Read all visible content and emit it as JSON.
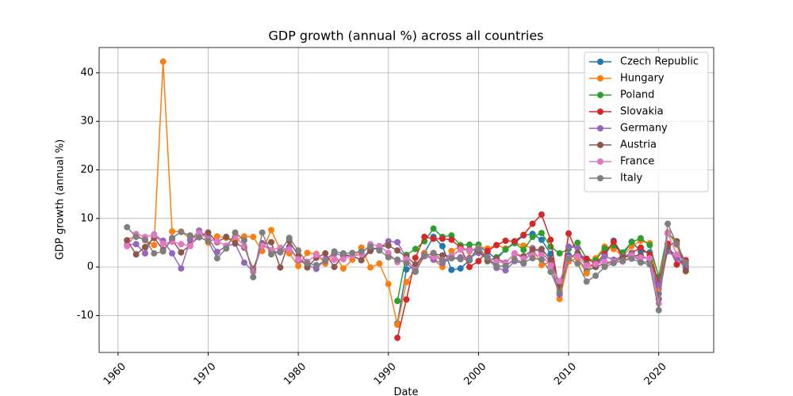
{
  "chart_data": {
    "type": "line",
    "title": "GDP growth (annual %) across all countries",
    "x_label": "Date",
    "y_label": "GDP growth (annual %)",
    "x": [
      1961,
      1962,
      1963,
      1964,
      1965,
      1966,
      1967,
      1968,
      1969,
      1970,
      1971,
      1972,
      1973,
      1974,
      1975,
      1976,
      1977,
      1978,
      1979,
      1980,
      1981,
      1982,
      1983,
      1984,
      1985,
      1986,
      1987,
      1988,
      1989,
      1990,
      1991,
      1992,
      1993,
      1994,
      1995,
      1996,
      1997,
      1998,
      1999,
      2000,
      2001,
      2002,
      2003,
      2004,
      2005,
      2006,
      2007,
      2008,
      2009,
      2010,
      2011,
      2012,
      2013,
      2014,
      2015,
      2016,
      2017,
      2018,
      2019,
      2020,
      2021,
      2022,
      2023
    ],
    "series": [
      {
        "name": "Czech Republic",
        "color": "#1f77b4",
        "values": [
          null,
          null,
          null,
          null,
          null,
          null,
          null,
          null,
          null,
          null,
          null,
          null,
          null,
          null,
          null,
          null,
          null,
          null,
          null,
          null,
          null,
          null,
          null,
          null,
          null,
          null,
          null,
          null,
          null,
          null,
          -11.6,
          -0.5,
          0.1,
          2.9,
          6.2,
          4.3,
          -0.6,
          -0.3,
          1.4,
          4.3,
          3.1,
          1.6,
          3.6,
          4.9,
          6.5,
          6.8,
          5.6,
          2.7,
          -4.7,
          2.4,
          1.8,
          -0.8,
          0.0,
          2.3,
          5.4,
          2.5,
          5.2,
          3.2,
          3.0,
          -5.5,
          3.6,
          2.4,
          -0.1
        ]
      },
      {
        "name": "Hungary",
        "color": "#ff7f0e",
        "values": [
          5.5,
          6.5,
          5.5,
          4.5,
          42.3,
          7.3,
          7.3,
          5.8,
          6.5,
          5.0,
          6.3,
          6.0,
          5.5,
          6.3,
          6.2,
          3.3,
          7.6,
          3.5,
          2.8,
          0.2,
          2.9,
          2.7,
          0.7,
          2.7,
          -0.3,
          1.5,
          4.0,
          -0.1,
          0.7,
          -3.5,
          -11.9,
          -3.1,
          -0.6,
          2.9,
          1.5,
          0.0,
          3.3,
          4.2,
          3.2,
          4.2,
          3.8,
          4.5,
          3.8,
          5.0,
          4.4,
          3.9,
          0.4,
          1.0,
          -6.6,
          1.1,
          1.9,
          -1.3,
          1.8,
          4.2,
          3.7,
          2.2,
          4.3,
          5.4,
          4.9,
          -4.5,
          7.1,
          4.6,
          -0.9
        ]
      },
      {
        "name": "Poland",
        "color": "#2ca02c",
        "values": [
          null,
          null,
          null,
          null,
          null,
          null,
          null,
          null,
          null,
          null,
          null,
          null,
          null,
          null,
          null,
          null,
          null,
          null,
          null,
          null,
          null,
          null,
          null,
          null,
          null,
          null,
          null,
          null,
          null,
          null,
          -7.0,
          2.5,
          3.7,
          5.3,
          7.9,
          6.2,
          6.5,
          4.5,
          4.6,
          4.6,
          1.2,
          2.0,
          3.6,
          5.0,
          3.5,
          6.2,
          7.0,
          4.2,
          2.8,
          3.7,
          5.0,
          1.6,
          1.4,
          3.8,
          4.4,
          3.0,
          5.1,
          5.9,
          4.5,
          -2.0,
          6.9,
          5.3,
          0.2
        ]
      },
      {
        "name": "Slovakia",
        "color": "#d62728",
        "values": [
          null,
          null,
          null,
          null,
          null,
          null,
          null,
          null,
          null,
          null,
          null,
          null,
          null,
          null,
          null,
          null,
          null,
          null,
          null,
          null,
          null,
          null,
          null,
          null,
          null,
          null,
          null,
          null,
          null,
          null,
          -14.6,
          -6.7,
          1.9,
          6.2,
          5.8,
          5.8,
          5.6,
          4.0,
          0.0,
          1.2,
          3.3,
          4.5,
          5.4,
          5.3,
          6.6,
          8.9,
          10.8,
          5.6,
          -5.5,
          6.9,
          2.8,
          1.7,
          0.7,
          2.7,
          5.2,
          1.9,
          2.9,
          4.0,
          2.5,
          -3.3,
          4.8,
          0.5,
          1.4
        ]
      },
      {
        "name": "Germany",
        "color": "#9467bd",
        "values": [
          4.6,
          4.7,
          2.8,
          6.7,
          5.4,
          2.8,
          -0.3,
          5.5,
          7.5,
          6.0,
          3.1,
          4.3,
          4.8,
          0.9,
          -0.9,
          4.9,
          3.3,
          3.0,
          4.2,
          1.4,
          0.5,
          -0.4,
          1.6,
          2.8,
          2.3,
          2.3,
          1.4,
          3.7,
          3.9,
          5.3,
          5.1,
          1.9,
          -1.0,
          2.5,
          1.5,
          0.8,
          1.8,
          2.0,
          1.9,
          2.9,
          1.7,
          -0.2,
          -0.7,
          1.2,
          0.7,
          3.8,
          3.0,
          1.0,
          -5.7,
          4.2,
          3.9,
          0.4,
          0.4,
          2.2,
          1.5,
          2.2,
          2.7,
          1.0,
          1.1,
          -3.8,
          3.2,
          1.8,
          -0.3
        ]
      },
      {
        "name": "Austria",
        "color": "#8c564b",
        "values": [
          5.5,
          2.6,
          4.1,
          6.0,
          3.5,
          5.6,
          3.0,
          4.5,
          6.3,
          7.1,
          5.1,
          6.2,
          4.9,
          4.0,
          -0.4,
          4.6,
          5.1,
          -0.1,
          5.4,
          2.3,
          -0.1,
          1.9,
          2.8,
          0.0,
          2.5,
          2.3,
          1.4,
          3.3,
          4.2,
          4.4,
          3.4,
          2.1,
          0.5,
          2.4,
          2.7,
          2.4,
          2.2,
          3.6,
          3.6,
          3.4,
          1.4,
          1.7,
          0.9,
          2.7,
          2.2,
          3.5,
          3.7,
          1.5,
          -3.8,
          1.8,
          2.9,
          0.7,
          0.0,
          0.7,
          1.0,
          2.0,
          2.3,
          2.4,
          1.5,
          -6.6,
          4.2,
          5.3,
          -0.8
        ]
      },
      {
        "name": "France",
        "color": "#e377c2",
        "values": [
          4.3,
          6.8,
          6.2,
          6.6,
          4.8,
          5.2,
          4.7,
          4.3,
          7.0,
          5.7,
          5.3,
          4.4,
          6.3,
          4.3,
          -1.0,
          4.4,
          3.5,
          4.0,
          3.6,
          1.6,
          1.1,
          2.5,
          1.3,
          1.5,
          1.6,
          2.3,
          2.6,
          4.7,
          4.3,
          2.9,
          1.0,
          1.6,
          -0.6,
          2.3,
          2.1,
          1.4,
          2.3,
          3.6,
          3.4,
          3.9,
          2.0,
          1.1,
          0.8,
          2.8,
          1.7,
          2.4,
          2.4,
          0.3,
          -2.9,
          1.9,
          2.2,
          0.3,
          0.6,
          1.0,
          1.1,
          1.1,
          2.3,
          1.9,
          1.8,
          -7.5,
          6.9,
          2.6,
          0.9
        ]
      },
      {
        "name": "Italy",
        "color": "#7f7f7f",
        "values": [
          8.2,
          6.2,
          5.6,
          2.8,
          3.2,
          6.0,
          7.2,
          6.5,
          6.1,
          5.4,
          1.8,
          3.8,
          7.1,
          5.5,
          -2.1,
          7.1,
          2.6,
          3.2,
          6.0,
          3.4,
          0.8,
          0.4,
          1.2,
          3.2,
          2.8,
          2.9,
          3.2,
          4.2,
          3.4,
          2.0,
          1.5,
          0.8,
          -0.9,
          2.2,
          2.9,
          1.3,
          1.8,
          1.6,
          1.6,
          3.7,
          2.0,
          0.2,
          0.2,
          1.6,
          0.9,
          1.8,
          1.5,
          -1.0,
          -5.3,
          1.7,
          0.7,
          -3.0,
          -1.8,
          0.0,
          0.8,
          1.3,
          1.7,
          0.9,
          0.5,
          -8.9,
          8.9,
          4.7,
          0.9
        ]
      }
    ],
    "xlim": [
      1957.9,
      2026.1
    ],
    "ylim": [
      -17.6,
      45.2
    ],
    "xticks": [
      1960,
      1970,
      1980,
      1990,
      2000,
      2010,
      2020
    ],
    "yticks": [
      -10,
      0,
      10,
      20,
      30,
      40
    ],
    "grid": true,
    "legend": "upper right"
  }
}
